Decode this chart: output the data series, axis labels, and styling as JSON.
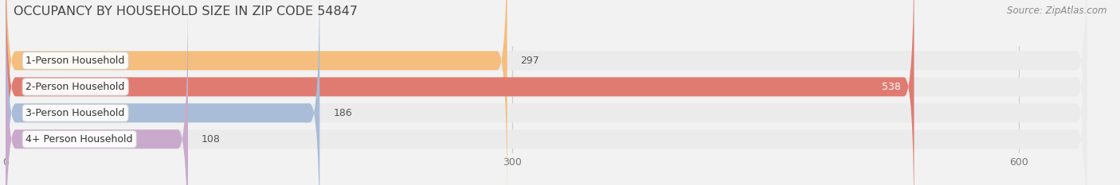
{
  "title": "OCCUPANCY BY HOUSEHOLD SIZE IN ZIP CODE 54847",
  "source": "Source: ZipAtlas.com",
  "categories": [
    "1-Person Household",
    "2-Person Household",
    "3-Person Household",
    "4+ Person Household"
  ],
  "values": [
    297,
    538,
    186,
    108
  ],
  "bar_colors": [
    "#F5BE7E",
    "#E07B72",
    "#A9BCD8",
    "#C9AACC"
  ],
  "value_text_colors": [
    "#555555",
    "#ffffff",
    "#555555",
    "#555555"
  ],
  "xlim_max": 650,
  "xticks": [
    0,
    300,
    600
  ],
  "background_color": "#F2F2F2",
  "bar_bg_color": "#EBEBEB",
  "title_fontsize": 11.5,
  "source_fontsize": 8.5,
  "label_fontsize": 9,
  "value_fontsize": 9
}
